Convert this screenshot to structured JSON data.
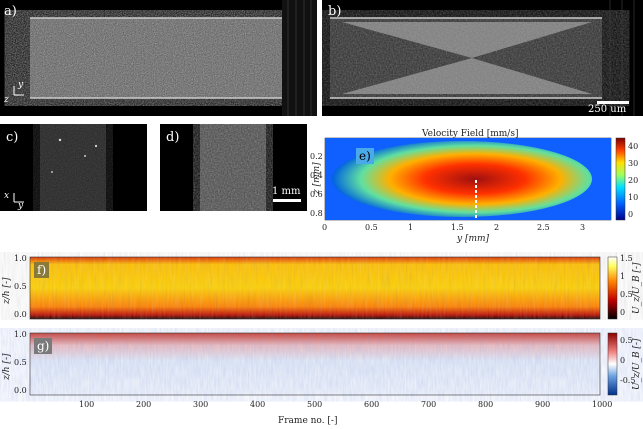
{
  "panels": {
    "a": {
      "label": "a)",
      "axis_y": "y",
      "axis_z": "z"
    },
    "b": {
      "label": "b)",
      "scalebar": "250 um"
    },
    "c": {
      "label": "c)",
      "axis_x": "x",
      "axis_y": "y"
    },
    "d": {
      "label": "d)",
      "scalebar": "1 mm"
    },
    "e": {
      "label": "e)"
    },
    "f": {
      "label": "f)"
    },
    "g": {
      "label": "g)"
    }
  },
  "chart_data": [
    {
      "type": "heatmap",
      "panel": "e",
      "title": "Velocity Field [mm/s]",
      "xlabel": "y [mm]",
      "ylabel": "z [mm]",
      "xlim": [
        0,
        3.3
      ],
      "ylim": [
        0.95,
        0.05
      ],
      "x_ticks": [
        "0",
        "0.5",
        "1",
        "1.5",
        "2",
        "2.5",
        "3"
      ],
      "y_ticks": [
        "0.2",
        "0.4",
        "0.6",
        "0.8"
      ],
      "colorbar": {
        "ticks": [
          "40",
          "30",
          "20",
          "10",
          "0"
        ],
        "range": [
          0,
          45
        ]
      }
    },
    {
      "type": "heatmap",
      "panel": "f",
      "xlabel": "",
      "ylabel": "z/h [-]",
      "y_ticks": [
        "1.0",
        "0.5",
        "0.0"
      ],
      "colorbar": {
        "label": "U_z/U_B [-]",
        "ticks": [
          "1.5",
          "1",
          "0.5",
          "0"
        ],
        "range": [
          0,
          1.5
        ]
      }
    },
    {
      "type": "heatmap",
      "panel": "g",
      "xlabel": "Frame no. [-]",
      "ylabel": "z/h [-]",
      "x_ticks": [
        "100",
        "200",
        "300",
        "400",
        "500",
        "600",
        "700",
        "800",
        "900",
        "1000"
      ],
      "xlim": [
        0,
        1000
      ],
      "y_ticks": [
        "1.0",
        "0.5",
        "0.0"
      ],
      "colorbar": {
        "label": "U_z/U_B [-]",
        "ticks": [
          "0.5",
          "0",
          "-0.5"
        ],
        "range": [
          -0.8,
          0.8
        ]
      }
    }
  ]
}
